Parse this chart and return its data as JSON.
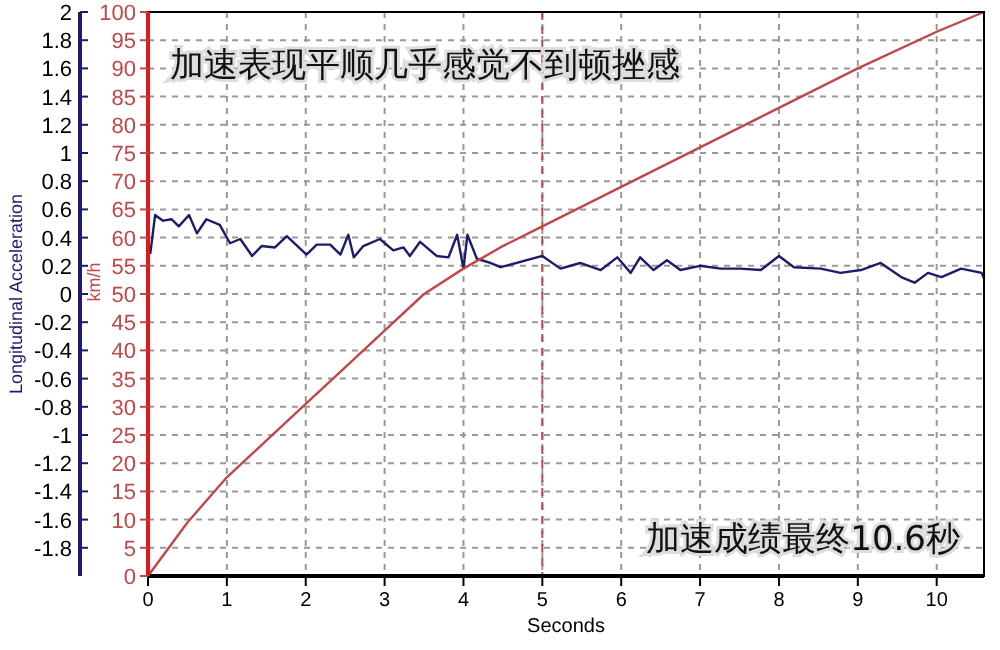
{
  "chart_data": {
    "type": "line",
    "xlabel": "Seconds",
    "ylabel": "Longitudinal Acceleration",
    "y2label": "km/h",
    "xlim": [
      0,
      10.6
    ],
    "xticks": [
      0,
      1,
      2,
      3,
      4,
      5,
      6,
      7,
      8,
      9,
      10
    ],
    "ylim": [
      -2,
      2
    ],
    "yticks": [
      -1.8,
      -1.6,
      -1.4,
      -1.2,
      -1,
      -0.8,
      -0.6,
      -0.4,
      -0.2,
      0,
      0.2,
      0.4,
      0.6,
      0.8,
      1,
      1.2,
      1.4,
      1.6,
      1.8,
      2
    ],
    "y2lim": [
      0,
      100
    ],
    "y2ticks": [
      0,
      5,
      10,
      15,
      20,
      25,
      30,
      35,
      40,
      45,
      50,
      55,
      60,
      65,
      70,
      75,
      80,
      85,
      90,
      95,
      100
    ],
    "grid": true,
    "series": [
      {
        "color": "#1c1c6c",
        "x": [
          0.03,
          0.09,
          0.19,
          0.3,
          0.39,
          0.52,
          0.62,
          0.74,
          0.91,
          1.04,
          1.17,
          1.32,
          1.44,
          1.61,
          1.76,
          2.01,
          2.14,
          2.31,
          2.44,
          2.54,
          2.61,
          2.73,
          2.94,
          3.11,
          3.24,
          3.32,
          3.45,
          3.66,
          3.81,
          3.92,
          4.0,
          4.05,
          4.17,
          4.34,
          4.47,
          5.0,
          5.23,
          5.48,
          5.74,
          5.95,
          6.12,
          6.24,
          6.41,
          6.58,
          6.75,
          7.0,
          7.26,
          7.51,
          7.77,
          8.0,
          8.19,
          8.53,
          8.78,
          9.04,
          9.29,
          9.55,
          9.72,
          9.89,
          10.06,
          10.31,
          10.57,
          10.6
        ],
        "values": [
          0.29,
          0.56,
          0.52,
          0.53,
          0.48,
          0.56,
          0.43,
          0.53,
          0.49,
          0.36,
          0.39,
          0.27,
          0.34,
          0.33,
          0.41,
          0.28,
          0.35,
          0.35,
          0.28,
          0.42,
          0.26,
          0.34,
          0.39,
          0.31,
          0.33,
          0.27,
          0.37,
          0.27,
          0.26,
          0.42,
          0.18,
          0.42,
          0.25,
          0.22,
          0.19,
          0.27,
          0.18,
          0.22,
          0.17,
          0.26,
          0.15,
          0.26,
          0.17,
          0.24,
          0.17,
          0.2,
          0.18,
          0.18,
          0.17,
          0.27,
          0.19,
          0.18,
          0.15,
          0.17,
          0.22,
          0.12,
          0.08,
          0.15,
          0.12,
          0.18,
          0.15,
          0.11
        ]
      },
      {
        "color": "#c04848",
        "axis": "y2",
        "x": [
          0,
          0.5,
          1,
          1.5,
          2,
          2.5,
          3,
          3.5,
          4,
          4.5,
          5,
          6,
          7,
          8,
          9,
          10,
          10.6
        ],
        "values": [
          0,
          9.5,
          17.5,
          24,
          30.5,
          37,
          43.5,
          50,
          54.5,
          58.5,
          62,
          69,
          76,
          83,
          90,
          96.5,
          100
        ]
      }
    ],
    "ref_lines": [
      {
        "axis": "x",
        "value": 5,
        "color": "#c04848",
        "line_style": "dashed"
      }
    ],
    "annotations": [
      "加速表现平顺几乎感觉不到顿挫感",
      "加速成绩最终10.6秒"
    ]
  }
}
